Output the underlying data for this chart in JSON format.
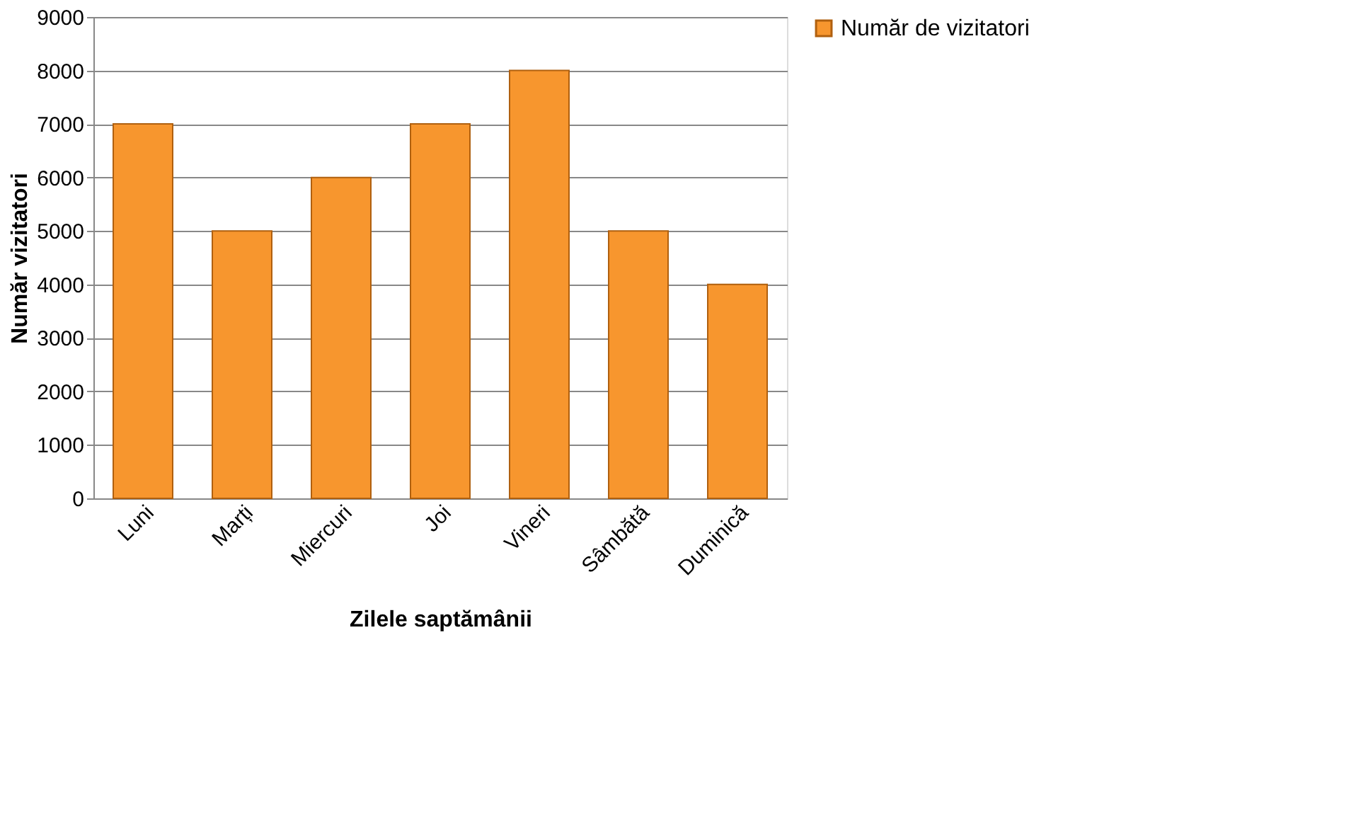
{
  "chart_data": {
    "type": "bar",
    "categories": [
      "Luni",
      "Marți",
      "Miercuri",
      "Joi",
      "Vineri",
      "Sâmbătă",
      "Duminică"
    ],
    "series": [
      {
        "name": "Număr de vizitatori",
        "color": "#f7962e",
        "values": [
          7000,
          5000,
          6000,
          7000,
          8000,
          5000,
          4000
        ]
      }
    ],
    "xlabel": "Zilele saptămânii",
    "ylabel": "Număr vizitatori",
    "ylim": [
      0,
      9000
    ],
    "yticks": [
      0,
      1000,
      2000,
      3000,
      4000,
      5000,
      6000,
      7000,
      8000,
      9000
    ],
    "grid": "y",
    "legend": "right"
  }
}
